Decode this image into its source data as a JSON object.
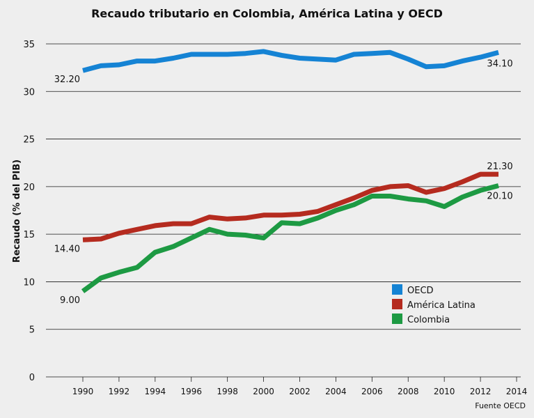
{
  "chart_data": {
    "type": "line",
    "title": "Recaudo tributario en Colombia, América Latina y OECD",
    "ylabel": "Recaudo (% del PIB)",
    "xlabel": "",
    "source": "Fuente OECD",
    "xlim": [
      1990,
      2014
    ],
    "ylim": [
      0,
      35
    ],
    "grid": true,
    "legend_position": "lower-right",
    "x": [
      1990,
      1991,
      1992,
      1993,
      1994,
      1995,
      1996,
      1997,
      1998,
      1999,
      2000,
      2001,
      2002,
      2003,
      2004,
      2005,
      2006,
      2007,
      2008,
      2009,
      2010,
      2011,
      2012,
      2013
    ],
    "x_ticks": [
      1990,
      1992,
      1994,
      1996,
      1998,
      2000,
      2002,
      2004,
      2006,
      2008,
      2010,
      2012,
      2014
    ],
    "y_ticks": [
      0,
      5,
      10,
      15,
      20,
      25,
      30,
      35
    ],
    "series": [
      {
        "name": "OECD",
        "color": "#1583d4",
        "values": [
          32.2,
          32.7,
          32.8,
          33.2,
          33.2,
          33.5,
          33.9,
          33.9,
          33.9,
          34.0,
          34.2,
          33.8,
          33.5,
          33.4,
          33.3,
          33.9,
          34.0,
          34.1,
          33.4,
          32.6,
          32.7,
          33.2,
          33.6,
          34.1
        ],
        "start_label": "32.20",
        "end_label": "34.10"
      },
      {
        "name": "América Latina",
        "color": "#b52b1f",
        "values": [
          14.4,
          14.5,
          15.1,
          15.5,
          15.9,
          16.1,
          16.1,
          16.8,
          16.6,
          16.7,
          17.0,
          17.0,
          17.1,
          17.4,
          18.1,
          18.8,
          19.6,
          20.0,
          20.1,
          19.4,
          19.8,
          20.5,
          21.3,
          21.3
        ],
        "start_label": "14.40",
        "end_label": "21.30"
      },
      {
        "name": "Colombia",
        "color": "#1d9a43",
        "values": [
          9.0,
          10.4,
          11.0,
          11.5,
          13.1,
          13.7,
          14.6,
          15.5,
          15.0,
          14.9,
          14.6,
          16.2,
          16.1,
          16.7,
          17.5,
          18.1,
          19.0,
          19.0,
          18.7,
          18.5,
          17.9,
          18.9,
          19.6,
          20.1
        ],
        "start_label": "9.00",
        "end_label": "20.10"
      }
    ]
  }
}
